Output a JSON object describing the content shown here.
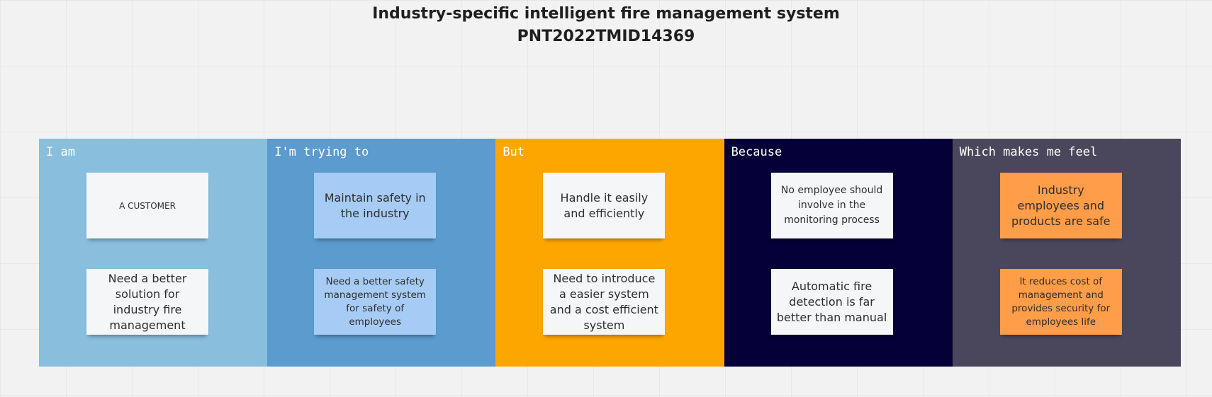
{
  "board": {
    "title_line1": "Industry-specific intelligent fire management system",
    "title_line2": "PNT2022TMID14369"
  },
  "columns": [
    {
      "heading": "I am",
      "bg": "#89bfdd",
      "heading_color": "#ffffff",
      "notes": [
        {
          "text": "A CUSTOMER",
          "bg": "#f5f6f8"
        },
        {
          "text": "Need a better solution for industry fire management",
          "bg": "#f5f6f8"
        }
      ]
    },
    {
      "heading": "I'm trying to",
      "bg": "#5b9bce",
      "heading_color": "#ffffff",
      "notes": [
        {
          "text": "Maintain safety in the industry",
          "bg": "#a6ccf5"
        },
        {
          "text": "Need a better safety management system for safety of employees",
          "bg": "#a6ccf5"
        }
      ]
    },
    {
      "heading": "But",
      "bg": "#fea600",
      "heading_color": "#ffffff",
      "notes": [
        {
          "text": "Handle it easily and efficiently",
          "bg": "#f5f6f8"
        },
        {
          "text": "Need to introduce a easier system and a cost efficient system",
          "bg": "#f5f6f8"
        }
      ]
    },
    {
      "heading": "Because",
      "bg": "#050038",
      "heading_color": "#ffffff",
      "notes": [
        {
          "text": "No employee should involve in the monitoring process",
          "bg": "#f5f6f8"
        },
        {
          "text": "Automatic fire detection is far better than manual",
          "bg": "#f5f6f8"
        }
      ]
    },
    {
      "heading": "Which makes me feel",
      "bg": "#4a475c",
      "heading_color": "#ffffff",
      "notes": [
        {
          "text": "Industry employees and products are safe",
          "bg": "#ff9d48"
        },
        {
          "text": "It reduces cost of management and provides security for employees life",
          "bg": "#ff9d48"
        }
      ]
    }
  ]
}
